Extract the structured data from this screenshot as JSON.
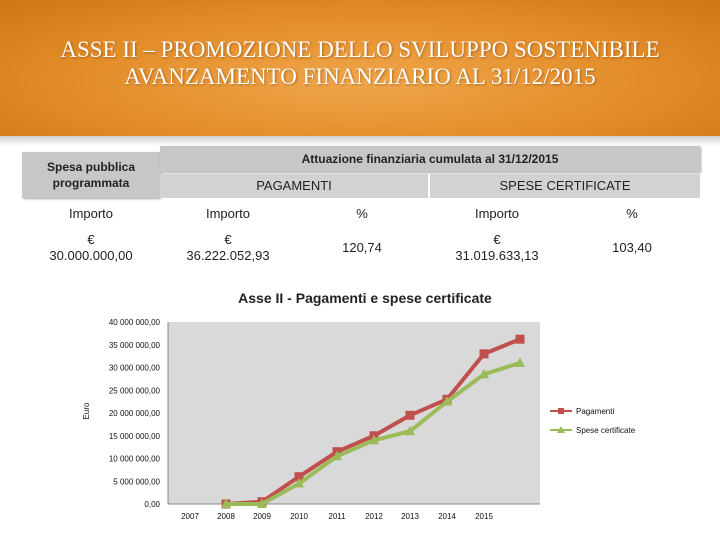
{
  "header": {
    "title_line1": "ASSE II – PROMOZIONE DELLO SVILUPPO SOSTENIBILE",
    "title_line2": "AVANZAMENTO FINANZIARIO AL 31/12/2015"
  },
  "table": {
    "spesa_label": "Spesa pubblica programmata",
    "attuazione_label": "Attuazione finanziaria cumulata al 31/12/2015",
    "pagamenti_label": "PAGAMENTI",
    "spese_cert_label": "SPESE CERTIFICATE",
    "col_importo1": "Importo",
    "col_importo2": "Importo",
    "col_pct1": "%",
    "col_importo3": "Importo",
    "col_pct2": "%",
    "currency": "€",
    "val_programmata": "30.000.000,00",
    "val_pagamenti": "36.222.052,93",
    "val_pct_pagamenti": "120,74",
    "val_spese_cert": "31.019.633,13",
    "val_pct_spese": "103,40"
  },
  "chart_data": {
    "type": "line",
    "title": "Asse II - Pagamenti e spese certificate",
    "ylabel": "Euro",
    "xlabel": "",
    "categories": [
      "2007",
      "2008",
      "2009",
      "2010",
      "2011",
      "2012",
      "2013",
      "2014",
      "2015"
    ],
    "ylim": [
      0,
      40000000
    ],
    "yticks": [
      0,
      5000000,
      10000000,
      15000000,
      20000000,
      25000000,
      30000000,
      35000000,
      40000000
    ],
    "ytick_labels": [
      "0,00",
      "5 000 000,00",
      "10 000 000,00",
      "15 000 000,00",
      "20 000 000,00",
      "25 000 000,00",
      "30 000 000,00",
      "35 000 000,00",
      "40 000 000,00"
    ],
    "grid": false,
    "legend_position": "right",
    "series": [
      {
        "name": "Pagamenti",
        "color": "#c0504d",
        "marker": "square",
        "x": [
          "2008",
          "2009",
          "2010",
          "2011",
          "2012",
          "2013",
          "2014",
          "2015",
          "2015"
        ],
        "values": [
          0,
          500000,
          6000000,
          11500000,
          15000000,
          19500000,
          23000000,
          33000000,
          36222053
        ]
      },
      {
        "name": "Spese certificate",
        "color": "#9bbb59",
        "marker": "triangle",
        "x": [
          "2008",
          "2009",
          "2010",
          "2011",
          "2012",
          "2013",
          "2014",
          "2015",
          "2015"
        ],
        "values": [
          0,
          0,
          4500000,
          10500000,
          14000000,
          16000000,
          22500000,
          28500000,
          31019633
        ]
      }
    ]
  },
  "colors": {
    "title_band": "#e38d2a",
    "table_grey": "#c7c7c7",
    "plot_area": "#d9d9d9",
    "pagamenti": "#c0504d",
    "spese": "#9bbb59"
  }
}
